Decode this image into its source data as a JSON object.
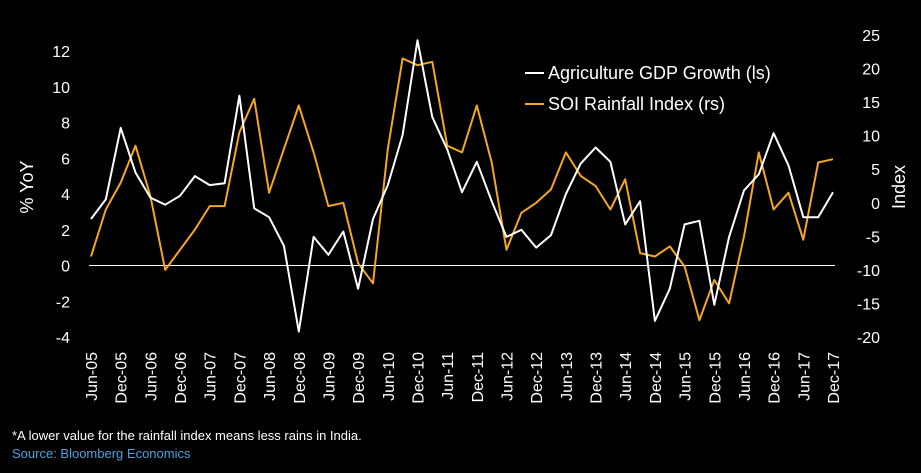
{
  "colors": {
    "background": "#000000",
    "series_gdp": "#ffffff",
    "series_soi": "#f5a623",
    "source": "#4aa3df"
  },
  "footnote": "*A lower value for the rainfall index means less rains in India.",
  "source": "Source: Bloomberg Economics",
  "chart_data": {
    "type": "line",
    "title": "",
    "xlabel": "",
    "ylabel_left": "% YoY",
    "ylabel_right": "Index",
    "ylim_left": [
      -4,
      12
    ],
    "yticks_left": [
      -4,
      -2,
      0,
      2,
      4,
      6,
      8,
      10,
      12
    ],
    "ylim_right": [
      -20,
      25
    ],
    "yticks_right": [
      -20,
      -15,
      -10,
      -5,
      0,
      5,
      10,
      15,
      20,
      25
    ],
    "grid": false,
    "legend_position": "top-right",
    "x_tick_labels": [
      "Jun-05",
      "Dec-05",
      "Jun-06",
      "Dec-06",
      "Jun-07",
      "Dec-07",
      "Jun-08",
      "Dec-08",
      "Jun-09",
      "Dec-09",
      "Jun-10",
      "Dec-10",
      "Jun-11",
      "Dec-11",
      "Jun-12",
      "Dec-12",
      "Jun-13",
      "Dec-13",
      "Jun-14",
      "Dec-14",
      "Jun-15",
      "Dec-15",
      "Jun-16",
      "Dec-16",
      "Jun-17",
      "Dec-17"
    ],
    "x": [
      "Jun-05",
      "Sep-05",
      "Dec-05",
      "Mar-06",
      "Jun-06",
      "Sep-06",
      "Dec-06",
      "Mar-07",
      "Jun-07",
      "Sep-07",
      "Dec-07",
      "Mar-08",
      "Jun-08",
      "Sep-08",
      "Dec-08",
      "Mar-09",
      "Jun-09",
      "Sep-09",
      "Dec-09",
      "Mar-10",
      "Jun-10",
      "Sep-10",
      "Dec-10",
      "Mar-11",
      "Jun-11",
      "Sep-11",
      "Dec-11",
      "Mar-12",
      "Jun-12",
      "Sep-12",
      "Dec-12",
      "Mar-13",
      "Jun-13",
      "Sep-13",
      "Dec-13",
      "Mar-14",
      "Jun-14",
      "Sep-14",
      "Dec-14",
      "Mar-15",
      "Jun-15",
      "Sep-15",
      "Dec-15",
      "Mar-16",
      "Jun-16",
      "Sep-16",
      "Dec-16",
      "Mar-17",
      "Jun-17",
      "Sep-17",
      "Dec-17"
    ],
    "series": [
      {
        "name": "Agriculture GDP Growth (ls)",
        "axis": "left",
        "values": [
          2.6,
          3.7,
          7.7,
          5.2,
          3.8,
          3.4,
          3.9,
          5.0,
          4.5,
          4.6,
          9.5,
          3.2,
          2.7,
          1.1,
          -3.7,
          1.6,
          0.6,
          1.9,
          -1.3,
          2.6,
          4.5,
          7.3,
          12.6,
          8.3,
          6.5,
          4.1,
          5.8,
          3.6,
          1.6,
          2.0,
          1.0,
          1.7,
          4.0,
          5.7,
          6.6,
          5.8,
          2.3,
          3.6,
          -3.1,
          -1.3,
          2.3,
          2.5,
          -2.2,
          1.6,
          4.2,
          5.1,
          7.4,
          5.6,
          2.7,
          2.7,
          4.1
        ]
      },
      {
        "name": "SOI Rainfall Index (rs)",
        "axis": "right",
        "values": [
          -8,
          -1,
          3,
          8.5,
          1,
          -10,
          -7,
          -4,
          -0.5,
          -0.5,
          10.5,
          15.5,
          1.5,
          8,
          14.5,
          7.5,
          -0.5,
          0,
          -9,
          -12,
          8,
          21.5,
          20.5,
          21,
          8.5,
          7.5,
          14.5,
          6,
          -7,
          -1.5,
          0,
          2,
          7.5,
          4,
          2.5,
          -1,
          3.5,
          -7.5,
          -8,
          -6.5,
          -9.5,
          -17.5,
          -11.5,
          -15,
          -5,
          7.5,
          -1,
          1.5,
          -5.5,
          6,
          6.5
        ]
      }
    ]
  }
}
